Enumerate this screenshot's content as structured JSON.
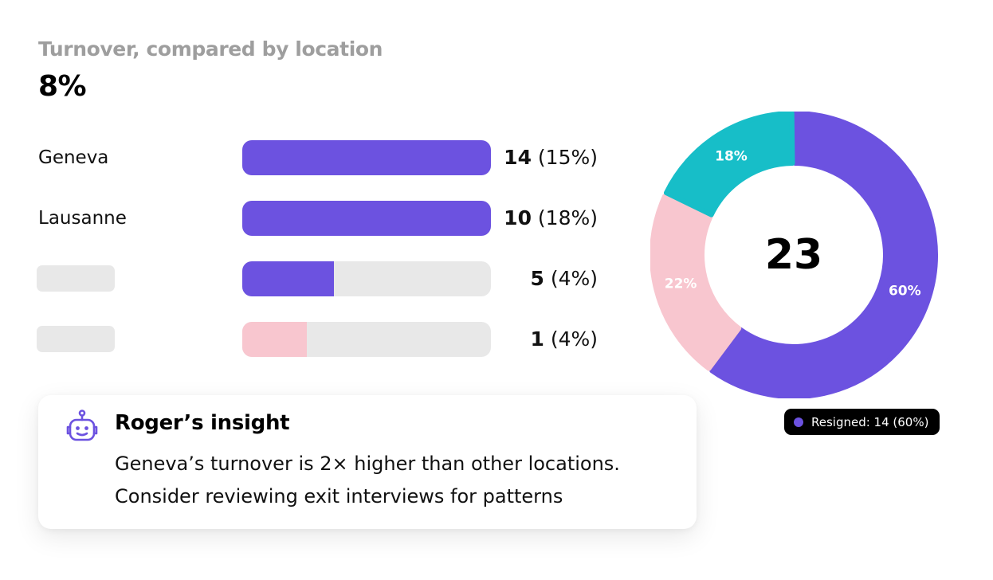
{
  "header": {
    "title": "Turnover, compared by location",
    "value": "8%"
  },
  "chart_data": [
    {
      "type": "bar",
      "orientation": "horizontal",
      "categories": [
        "Geneva",
        "Lausanne",
        "",
        ""
      ],
      "values": [
        14,
        10,
        5,
        1
      ],
      "fill_ratio": [
        1.0,
        1.0,
        0.37,
        0.26
      ],
      "value_labels": [
        "14",
        "10",
        "5",
        "1"
      ],
      "percent_labels": [
        "(15%)",
        "(18%)",
        "(4%)",
        "(4%)"
      ],
      "bar_colors": [
        "#6c52e0",
        "#6c52e0",
        "#6c52e0",
        "#f8c6cf"
      ],
      "track_color": "#e8e8e8"
    },
    {
      "type": "pie",
      "variant": "donut",
      "center_label": "23",
      "slices": [
        {
          "label": "60%",
          "value": 60,
          "color": "#6c52e0"
        },
        {
          "label": "22%",
          "value": 22,
          "color": "#f8c6cf"
        },
        {
          "label": "18%",
          "value": 18,
          "color": "#17bec8"
        }
      ],
      "legend": {
        "text": "Resigned: 14 (60%)",
        "color": "#6c52e0",
        "placement": "bottom-right"
      }
    }
  ],
  "insight": {
    "title": "Roger’s insight",
    "line1": "Geneva’s turnover is 2× higher than other locations.",
    "line2": "Consider reviewing exit interviews for patterns",
    "icon": "robot-icon",
    "icon_color": "#6c52e0"
  }
}
